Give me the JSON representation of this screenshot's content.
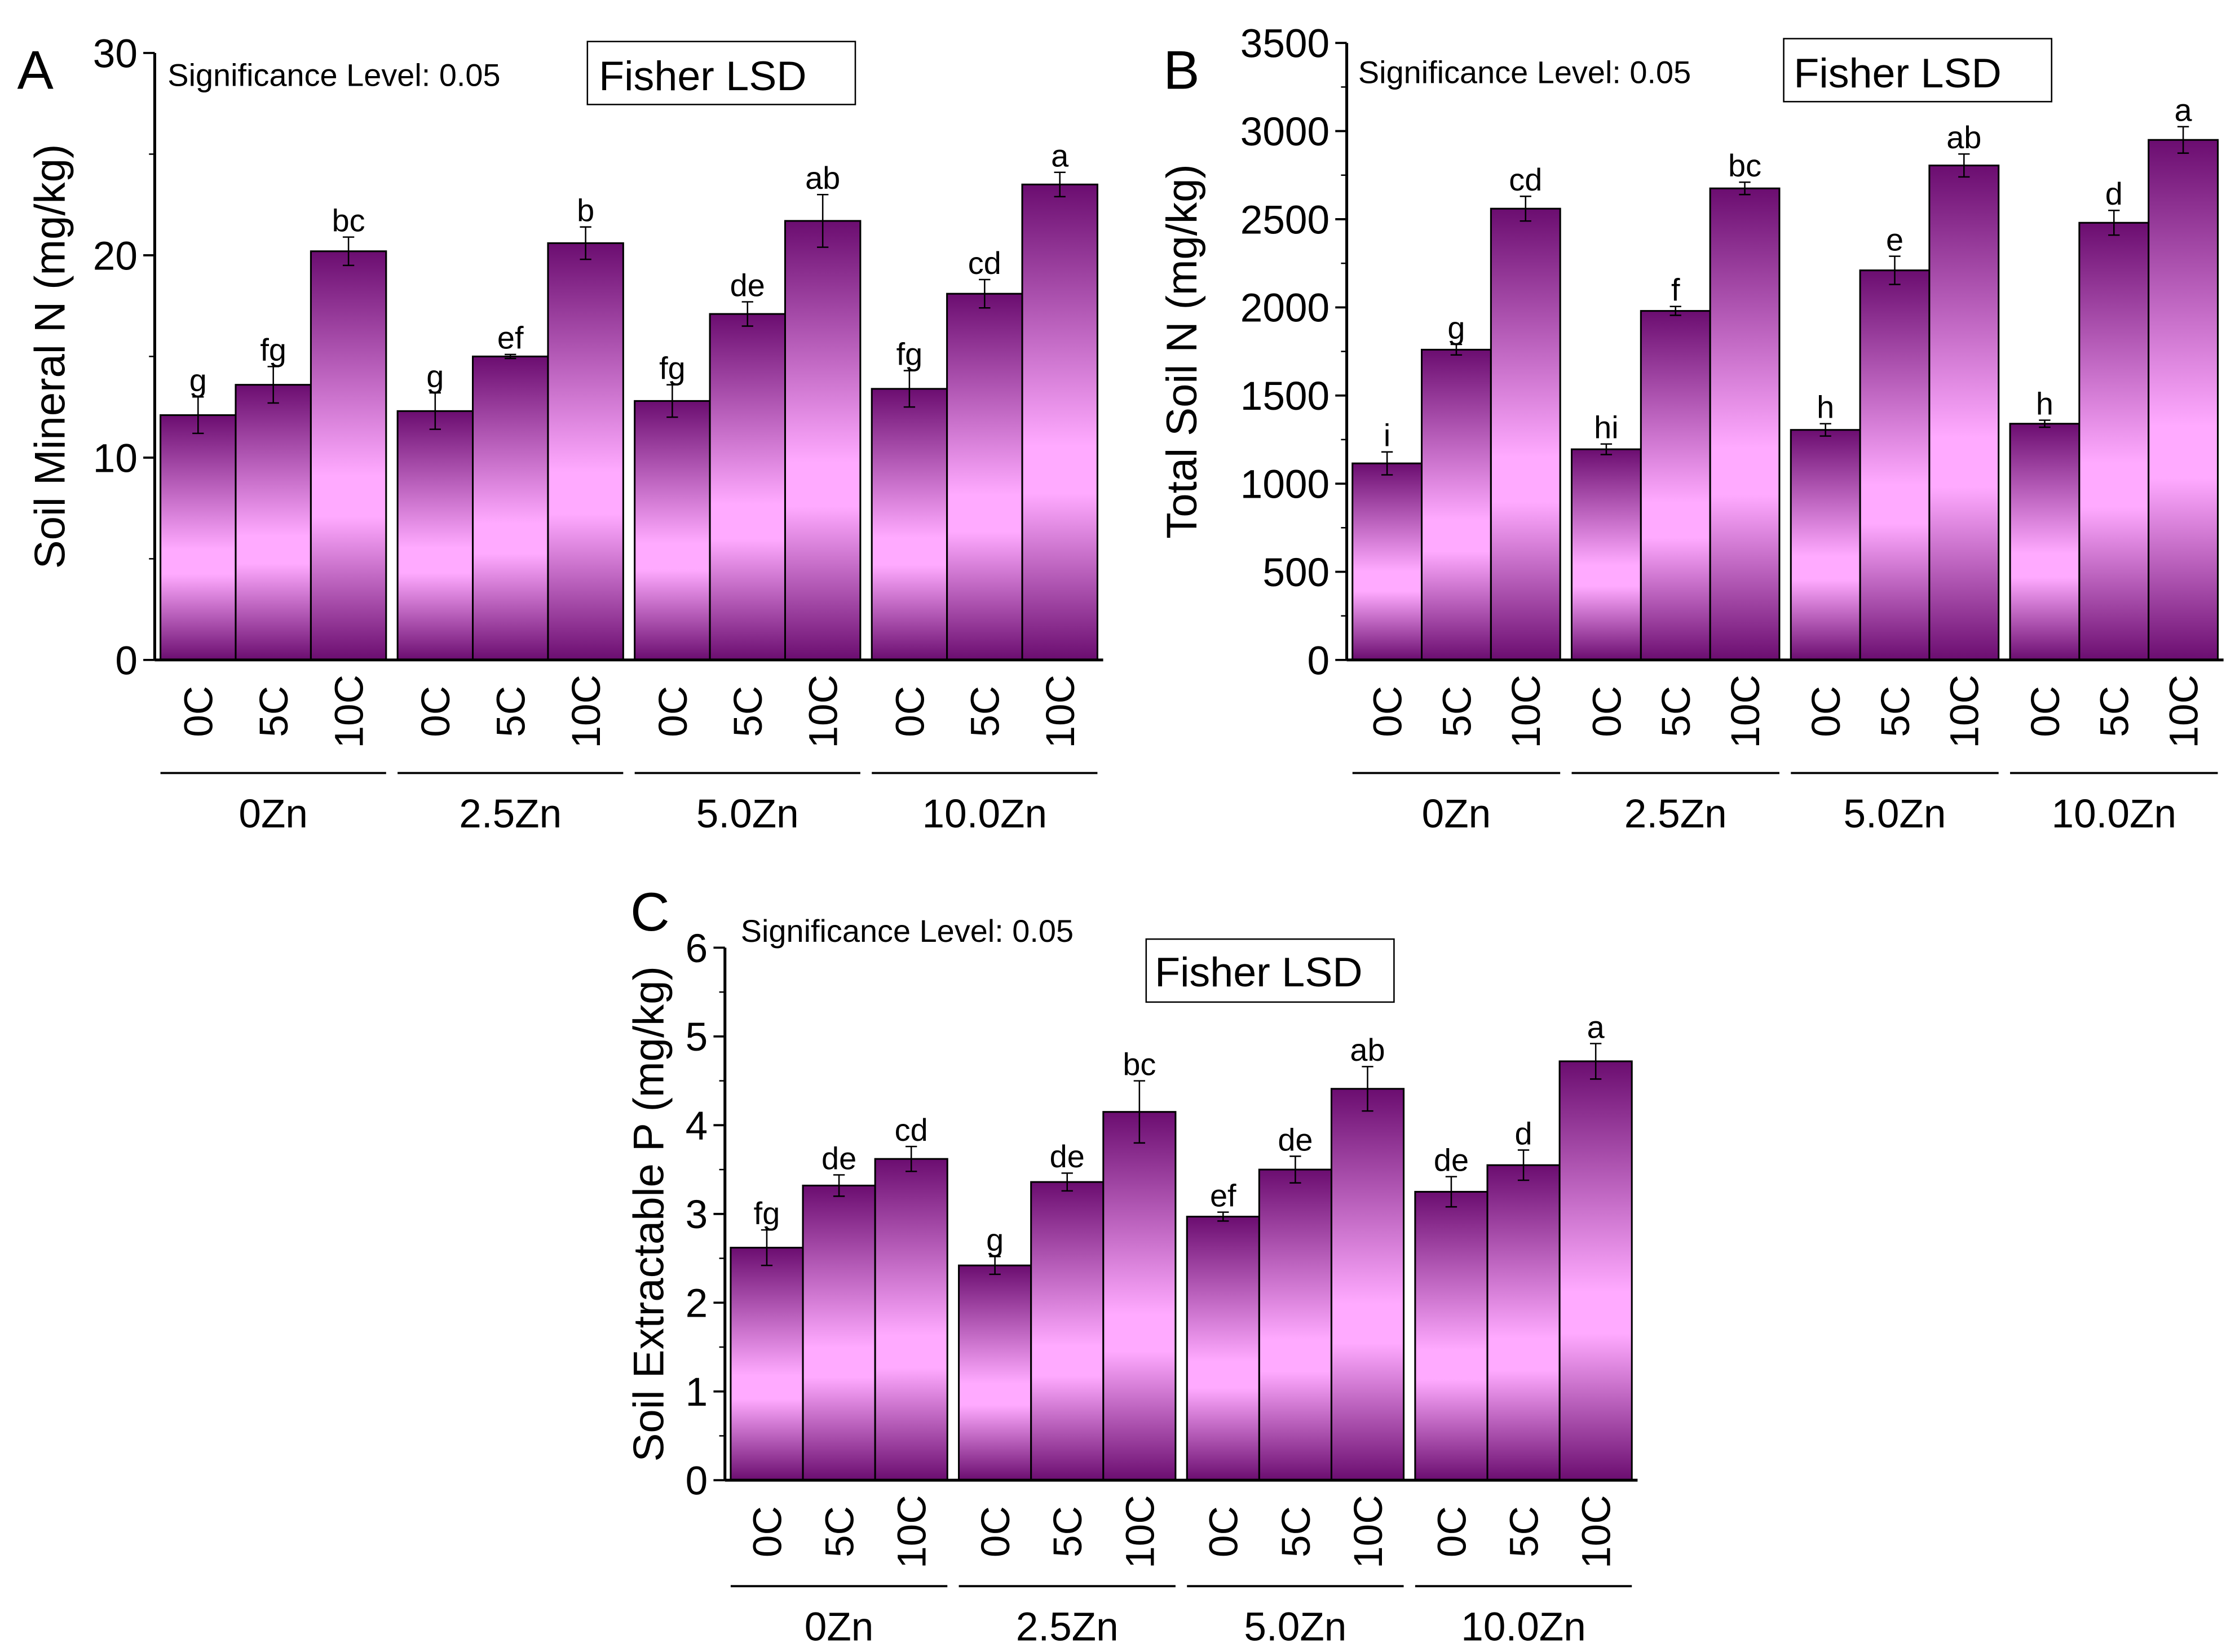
{
  "colors": {
    "bar_dark": "#6b0d70",
    "bar_light": "#ffaaff",
    "axis": "#000000"
  },
  "chart_data": [
    {
      "panel": "A",
      "type": "bar",
      "ylabel": "Soil Mineral N (mg/kg)",
      "ylim": [
        0,
        30
      ],
      "yticks": [
        0,
        10,
        20,
        30
      ],
      "annotation": "Significance Level: 0.05",
      "boxed_annotation": "Fisher LSD",
      "groups": [
        "0Zn",
        "2.5Zn",
        "5.0Zn",
        "10.0Zn"
      ],
      "categories": [
        "0C",
        "5C",
        "10C"
      ],
      "values": [
        [
          12.1,
          13.6,
          20.2
        ],
        [
          12.3,
          15.0,
          20.6
        ],
        [
          12.8,
          17.1,
          21.7
        ],
        [
          13.4,
          18.1,
          23.5
        ]
      ],
      "errors": [
        [
          0.9,
          0.9,
          0.7
        ],
        [
          0.9,
          0.1,
          0.8
        ],
        [
          0.8,
          0.6,
          1.3
        ],
        [
          0.9,
          0.7,
          0.6
        ]
      ],
      "letters": [
        [
          "g",
          "fg",
          "bc"
        ],
        [
          "g",
          "ef",
          "b"
        ],
        [
          "fg",
          "de",
          "ab"
        ],
        [
          "fg",
          "cd",
          "a"
        ]
      ]
    },
    {
      "panel": "B",
      "type": "bar",
      "ylabel": "Total Soil N (mg/kg)",
      "ylim": [
        0,
        3500
      ],
      "yticks": [
        0,
        500,
        1000,
        1500,
        2000,
        2500,
        3000,
        3500
      ],
      "annotation": "Significance Level: 0.05",
      "boxed_annotation": "Fisher LSD",
      "groups": [
        "0Zn",
        "2.5Zn",
        "5.0Zn",
        "10.0Zn"
      ],
      "categories": [
        "0C",
        "5C",
        "10C"
      ],
      "values": [
        [
          1115,
          1760,
          2560
        ],
        [
          1195,
          1980,
          2675
        ],
        [
          1305,
          2210,
          2805
        ],
        [
          1340,
          2480,
          2950
        ]
      ],
      "errors": [
        [
          65,
          30,
          70
        ],
        [
          30,
          25,
          35
        ],
        [
          35,
          80,
          65
        ],
        [
          20,
          70,
          75
        ]
      ],
      "letters": [
        [
          "i",
          "g",
          "cd"
        ],
        [
          "hi",
          "f",
          "bc"
        ],
        [
          "h",
          "e",
          "ab"
        ],
        [
          "h",
          "d",
          "a"
        ]
      ]
    },
    {
      "panel": "C",
      "type": "bar",
      "ylabel": "Soil  Extractable P (mg/kg)",
      "ylim": [
        0,
        6
      ],
      "yticks": [
        0,
        1,
        2,
        3,
        4,
        5,
        6
      ],
      "annotation": "Significance Level: 0.05",
      "boxed_annotation": "Fisher LSD",
      "groups": [
        "0Zn",
        "2.5Zn",
        "5.0Zn",
        "10.0Zn"
      ],
      "categories": [
        "0C",
        "5C",
        "10C"
      ],
      "values": [
        [
          2.62,
          3.32,
          3.62
        ],
        [
          2.42,
          3.36,
          4.15
        ],
        [
          2.97,
          3.5,
          4.41
        ],
        [
          3.25,
          3.55,
          4.72
        ]
      ],
      "errors": [
        [
          0.2,
          0.12,
          0.14
        ],
        [
          0.1,
          0.1,
          0.35
        ],
        [
          0.05,
          0.15,
          0.25
        ],
        [
          0.17,
          0.17,
          0.2
        ]
      ],
      "letters": [
        [
          "fg",
          "de",
          "cd"
        ],
        [
          "g",
          "de",
          "bc"
        ],
        [
          "ef",
          "de",
          "ab"
        ],
        [
          "de",
          "d",
          "a"
        ]
      ]
    }
  ]
}
